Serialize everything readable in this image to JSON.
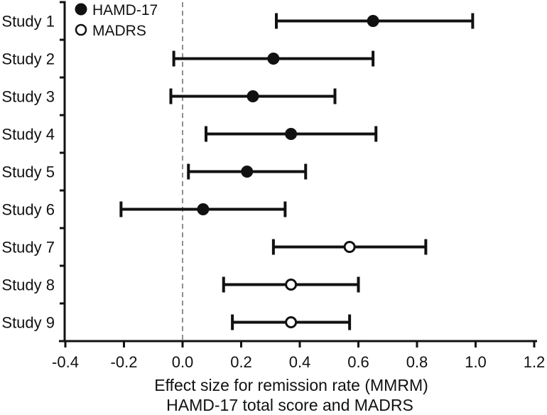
{
  "chart_data": {
    "type": "forest",
    "title": "",
    "xlabel": [
      "Effect size for remission rate (MMRM)",
      "HAMD-17 total score and MADRS"
    ],
    "xlim": [
      -0.4,
      1.2
    ],
    "x_tick_values": [
      -0.4,
      -0.2,
      0.0,
      0.2,
      0.4,
      0.6,
      0.8,
      1.0,
      1.2
    ],
    "x_tick_labels": [
      "-0.4",
      "-0.2",
      "0.0",
      "0.2",
      "0.4",
      "0.6",
      "0.8",
      "1.0",
      "1.2"
    ],
    "zero_reference_line": 0.0,
    "grid": false,
    "legend_position": "top-left-inside",
    "legend": [
      {
        "label": "HAMD-17",
        "marker": "filled-circle"
      },
      {
        "label": "MADRS",
        "marker": "open-circle"
      }
    ],
    "studies": [
      {
        "label": "Study 1",
        "measure": "HAMD-17",
        "marker": "filled",
        "estimate": 0.65,
        "ci_low": 0.32,
        "ci_high": 0.99
      },
      {
        "label": "Study 2",
        "measure": "HAMD-17",
        "marker": "filled",
        "estimate": 0.31,
        "ci_low": -0.03,
        "ci_high": 0.65
      },
      {
        "label": "Study 3",
        "measure": "HAMD-17",
        "marker": "filled",
        "estimate": 0.24,
        "ci_low": -0.04,
        "ci_high": 0.52
      },
      {
        "label": "Study 4",
        "measure": "HAMD-17",
        "marker": "filled",
        "estimate": 0.37,
        "ci_low": 0.08,
        "ci_high": 0.66
      },
      {
        "label": "Study 5",
        "measure": "HAMD-17",
        "marker": "filled",
        "estimate": 0.22,
        "ci_low": 0.02,
        "ci_high": 0.42
      },
      {
        "label": "Study 6",
        "measure": "HAMD-17",
        "marker": "filled",
        "estimate": 0.07,
        "ci_low": -0.21,
        "ci_high": 0.35
      },
      {
        "label": "Study 7",
        "measure": "MADRS",
        "marker": "open",
        "estimate": 0.57,
        "ci_low": 0.31,
        "ci_high": 0.83
      },
      {
        "label": "Study 8",
        "measure": "MADRS",
        "marker": "open",
        "estimate": 0.37,
        "ci_low": 0.14,
        "ci_high": 0.6
      },
      {
        "label": "Study 9",
        "measure": "MADRS",
        "marker": "open",
        "estimate": 0.37,
        "ci_low": 0.17,
        "ci_high": 0.57
      }
    ],
    "colors": {
      "data": "#111111",
      "zero_line": "#8f8f8f",
      "background": "#ffffff"
    }
  }
}
